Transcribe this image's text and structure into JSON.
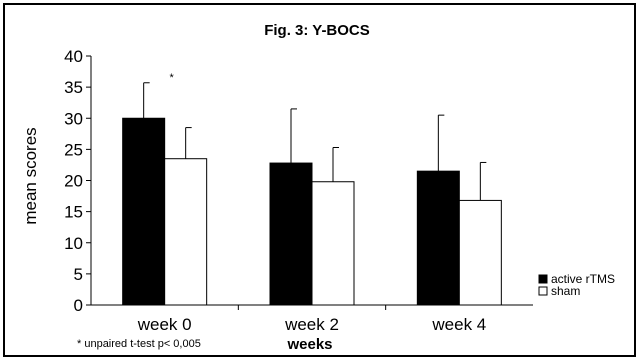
{
  "chart_data": {
    "type": "bar",
    "title": "Fig. 3: Y-BOCS",
    "xlabel": "weeks",
    "ylabel": "mean scores",
    "ylim": [
      0,
      40
    ],
    "yticks": [
      0,
      5,
      10,
      15,
      20,
      25,
      30,
      35,
      40
    ],
    "categories": [
      "week 0",
      "week 2",
      "week 4"
    ],
    "series": [
      {
        "name": "active rTMS",
        "color": "#000000",
        "values": [
          30,
          22.8,
          21.5
        ],
        "error_upper": [
          35.7,
          31.5,
          30.5
        ]
      },
      {
        "name": "sham",
        "color": "#ffffff",
        "values": [
          23.5,
          19.8,
          16.8
        ],
        "error_upper": [
          28.5,
          25.3,
          22.9
        ]
      }
    ],
    "annotations": [
      {
        "text": "*",
        "category": "week 0"
      },
      {
        "text": "* unpaired t-test p< 0,005"
      }
    ],
    "grid": false,
    "legend_position": "right"
  }
}
